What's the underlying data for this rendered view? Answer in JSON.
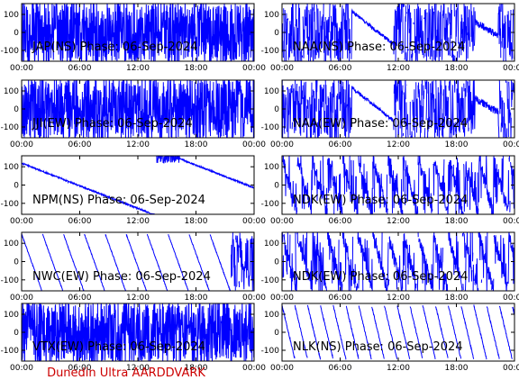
{
  "credit": "Dunedin Ultra AARDDVARK",
  "colors": {
    "trace": "#0000ff",
    "axes": "#000000",
    "credit": "#cc0000"
  },
  "chart_data": [
    {
      "type": "line",
      "title": "JAP(NS) Phase: 06-Sep-2024",
      "ylim": [
        -160,
        160
      ],
      "yticks": [
        100,
        0,
        -100
      ],
      "xticks": [
        "00:00",
        "06:00",
        "12:00",
        "18:00",
        "00:00"
      ],
      "series": [
        {
          "pattern": "dense-noise",
          "values_description_free": true
        }
      ]
    },
    {
      "type": "line",
      "title": "NAA(NS) Phase: 06-Sep-2024",
      "ylim": [
        -160,
        160
      ],
      "yticks": [
        100,
        0,
        -100
      ],
      "xticks": [
        "00:00",
        "06:00",
        "12:00",
        "18:00",
        "00:00"
      ],
      "series": [
        {
          "pattern": "noise-with-drift"
        }
      ]
    },
    {
      "type": "line",
      "title": "JJI(EW) Phase: 06-Sep-2024",
      "ylim": [
        -160,
        160
      ],
      "yticks": [
        100,
        0,
        -100
      ],
      "xticks": [
        "00:00",
        "06:00",
        "12:00",
        "18:00",
        "00:00"
      ],
      "series": [
        {
          "pattern": "dense-noise"
        }
      ]
    },
    {
      "type": "line",
      "title": "NAA(EW) Phase: 06-Sep-2024",
      "ylim": [
        -160,
        160
      ],
      "yticks": [
        100,
        0,
        -100
      ],
      "xticks": [
        "00:00",
        "06:00",
        "12:00",
        "18:00",
        "00:00"
      ],
      "series": [
        {
          "pattern": "noise-with-drift"
        }
      ]
    },
    {
      "type": "line",
      "title": "NPM(NS) Phase: 06-Sep-2024",
      "ylim": [
        -160,
        160
      ],
      "yticks": [
        100,
        0,
        -100
      ],
      "xticks": [
        "00:00",
        "06:00",
        "12:00",
        "18:00",
        "00:00"
      ],
      "series": [
        {
          "pattern": "smooth-drift"
        }
      ]
    },
    {
      "type": "line",
      "title": "NDK(EW) Phase: 06-Sep-2024",
      "ylim": [
        -160,
        160
      ],
      "yticks": [
        100,
        0,
        -100
      ],
      "xticks": [
        "00:00",
        "06:00",
        "12:00",
        "18:00",
        "00:00"
      ],
      "series": [
        {
          "pattern": "sawtooth-noisy"
        }
      ]
    },
    {
      "type": "line",
      "title": "NWC(EW) Phase: 06-Sep-2024",
      "ylim": [
        -160,
        160
      ],
      "yticks": [
        100,
        0,
        -100
      ],
      "xticks": [
        "00:00",
        "06:00",
        "12:00",
        "18:00",
        "00:00"
      ],
      "series": [
        {
          "pattern": "sawtooth"
        }
      ]
    },
    {
      "type": "line",
      "title": "NDK(EW) Phase: 06-Sep-2024",
      "ylim": [
        -160,
        160
      ],
      "yticks": [
        100,
        0,
        -100
      ],
      "xticks": [
        "00:00",
        "06:00",
        "12:00",
        "18:00",
        "00:00"
      ],
      "series": [
        {
          "pattern": "sawtooth-noisy"
        }
      ]
    },
    {
      "type": "line",
      "title": "VTX(EW) Phase: 06-Sep-2024",
      "ylim": [
        -160,
        160
      ],
      "yticks": [
        100,
        0,
        -100
      ],
      "xticks": [
        "00:00",
        "06:00",
        "12:00",
        "18:00",
        "00:00"
      ],
      "series": [
        {
          "pattern": "dense-noise"
        }
      ]
    },
    {
      "type": "line",
      "title": "NLK(NS) Phase: 06-Sep-2024",
      "ylim": [
        -160,
        160
      ],
      "yticks": [
        100,
        0,
        -100
      ],
      "xticks": [
        "00:00",
        "06:00",
        "12:00",
        "18:00",
        "00:00"
      ],
      "series": [
        {
          "pattern": "sawtooth-fine"
        }
      ]
    }
  ]
}
